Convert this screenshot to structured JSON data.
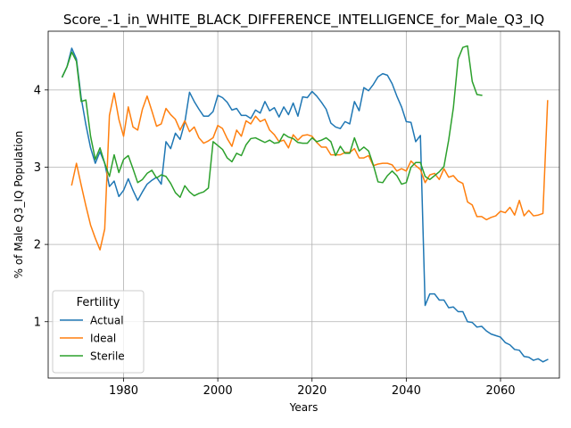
{
  "chart_data": {
    "type": "line",
    "title": "Score_-1_in_WHITE_BLACK_DIFFERENCE_INTELLIGENCE_for_Male_Q3_IQ",
    "xlabel": "Years",
    "ylabel": "% of Male Q3_IQ Population",
    "xlim": [
      1964,
      2072.5
    ],
    "ylim": [
      0.27,
      4.76
    ],
    "x_ticks": [
      1980,
      2000,
      2020,
      2040,
      2060
    ],
    "y_ticks": [
      1,
      2,
      3,
      4
    ],
    "grid": true,
    "legend": {
      "title": "Fertility",
      "position": "lower-left"
    },
    "series": [
      {
        "name": "Actual",
        "color": "#1f77b4",
        "points": [
          [
            1967,
            4.17
          ],
          [
            1968,
            4.3
          ],
          [
            1969,
            4.54
          ],
          [
            1970,
            4.4
          ],
          [
            1971,
            3.9
          ],
          [
            1972,
            3.55
          ],
          [
            1973,
            3.25
          ],
          [
            1974,
            3.05
          ],
          [
            1975,
            3.2
          ],
          [
            1976,
            3.05
          ],
          [
            1977,
            2.75
          ],
          [
            1978,
            2.82
          ],
          [
            1979,
            2.62
          ],
          [
            1980,
            2.7
          ],
          [
            1981,
            2.85
          ],
          [
            1982,
            2.7
          ],
          [
            1983,
            2.57
          ],
          [
            1984,
            2.68
          ],
          [
            1985,
            2.78
          ],
          [
            1986,
            2.83
          ],
          [
            1987,
            2.87
          ],
          [
            1988,
            2.78
          ],
          [
            1989,
            3.33
          ],
          [
            1990,
            3.24
          ],
          [
            1991,
            3.44
          ],
          [
            1992,
            3.36
          ],
          [
            1993,
            3.58
          ],
          [
            1994,
            3.97
          ],
          [
            1995,
            3.85
          ],
          [
            1996,
            3.75
          ],
          [
            1997,
            3.66
          ],
          [
            1998,
            3.66
          ],
          [
            1999,
            3.72
          ],
          [
            2000,
            3.93
          ],
          [
            2001,
            3.9
          ],
          [
            2002,
            3.84
          ],
          [
            2003,
            3.74
          ],
          [
            2004,
            3.76
          ],
          [
            2005,
            3.67
          ],
          [
            2006,
            3.67
          ],
          [
            2007,
            3.63
          ],
          [
            2008,
            3.74
          ],
          [
            2009,
            3.7
          ],
          [
            2010,
            3.85
          ],
          [
            2011,
            3.73
          ],
          [
            2012,
            3.77
          ],
          [
            2013,
            3.65
          ],
          [
            2014,
            3.78
          ],
          [
            2015,
            3.68
          ],
          [
            2016,
            3.83
          ],
          [
            2017,
            3.66
          ],
          [
            2018,
            3.91
          ],
          [
            2019,
            3.9
          ],
          [
            2020,
            3.98
          ],
          [
            2021,
            3.92
          ],
          [
            2022,
            3.84
          ],
          [
            2023,
            3.75
          ],
          [
            2024,
            3.57
          ],
          [
            2025,
            3.52
          ],
          [
            2026,
            3.5
          ],
          [
            2027,
            3.59
          ],
          [
            2028,
            3.56
          ],
          [
            2029,
            3.85
          ],
          [
            2030,
            3.73
          ],
          [
            2031,
            4.03
          ],
          [
            2032,
            3.99
          ],
          [
            2033,
            4.07
          ],
          [
            2034,
            4.17
          ],
          [
            2035,
            4.21
          ],
          [
            2036,
            4.19
          ],
          [
            2037,
            4.08
          ],
          [
            2038,
            3.92
          ],
          [
            2039,
            3.78
          ],
          [
            2040,
            3.59
          ],
          [
            2041,
            3.58
          ],
          [
            2042,
            3.33
          ],
          [
            2043,
            3.41
          ],
          [
            2044,
            1.21
          ],
          [
            2045,
            1.36
          ],
          [
            2046,
            1.36
          ],
          [
            2047,
            1.28
          ],
          [
            2048,
            1.28
          ],
          [
            2049,
            1.18
          ],
          [
            2050,
            1.19
          ],
          [
            2051,
            1.13
          ],
          [
            2052,
            1.13
          ],
          [
            2053,
            1.0
          ],
          [
            2054,
            0.99
          ],
          [
            2055,
            0.93
          ],
          [
            2056,
            0.94
          ],
          [
            2057,
            0.88
          ],
          [
            2058,
            0.84
          ],
          [
            2059,
            0.82
          ],
          [
            2060,
            0.8
          ],
          [
            2061,
            0.73
          ],
          [
            2062,
            0.7
          ],
          [
            2063,
            0.64
          ],
          [
            2064,
            0.63
          ],
          [
            2065,
            0.55
          ],
          [
            2066,
            0.54
          ],
          [
            2067,
            0.5
          ],
          [
            2068,
            0.52
          ],
          [
            2069,
            0.48
          ],
          [
            2070,
            0.51
          ]
        ]
      },
      {
        "name": "Ideal",
        "color": "#ff7f0e",
        "points": [
          [
            1969,
            2.77
          ],
          [
            1970,
            3.05
          ],
          [
            1971,
            2.77
          ],
          [
            1972,
            2.5
          ],
          [
            1973,
            2.25
          ],
          [
            1974,
            2.08
          ],
          [
            1975,
            1.93
          ],
          [
            1976,
            2.2
          ],
          [
            1977,
            3.67
          ],
          [
            1978,
            3.96
          ],
          [
            1979,
            3.62
          ],
          [
            1980,
            3.4
          ],
          [
            1981,
            3.78
          ],
          [
            1982,
            3.52
          ],
          [
            1983,
            3.48
          ],
          [
            1984,
            3.75
          ],
          [
            1985,
            3.92
          ],
          [
            1986,
            3.73
          ],
          [
            1987,
            3.53
          ],
          [
            1988,
            3.56
          ],
          [
            1989,
            3.76
          ],
          [
            1990,
            3.68
          ],
          [
            1991,
            3.62
          ],
          [
            1992,
            3.48
          ],
          [
            1993,
            3.6
          ],
          [
            1994,
            3.46
          ],
          [
            1995,
            3.52
          ],
          [
            1996,
            3.38
          ],
          [
            1997,
            3.31
          ],
          [
            1998,
            3.34
          ],
          [
            1999,
            3.38
          ],
          [
            2000,
            3.54
          ],
          [
            2001,
            3.5
          ],
          [
            2002,
            3.37
          ],
          [
            2003,
            3.27
          ],
          [
            2004,
            3.48
          ],
          [
            2005,
            3.4
          ],
          [
            2006,
            3.6
          ],
          [
            2007,
            3.56
          ],
          [
            2008,
            3.66
          ],
          [
            2009,
            3.59
          ],
          [
            2010,
            3.62
          ],
          [
            2011,
            3.48
          ],
          [
            2012,
            3.42
          ],
          [
            2013,
            3.33
          ],
          [
            2014,
            3.35
          ],
          [
            2015,
            3.25
          ],
          [
            2016,
            3.42
          ],
          [
            2017,
            3.35
          ],
          [
            2018,
            3.41
          ],
          [
            2019,
            3.42
          ],
          [
            2020,
            3.4
          ],
          [
            2021,
            3.32
          ],
          [
            2022,
            3.26
          ],
          [
            2023,
            3.26
          ],
          [
            2024,
            3.16
          ],
          [
            2025,
            3.16
          ],
          [
            2026,
            3.16
          ],
          [
            2027,
            3.19
          ],
          [
            2028,
            3.19
          ],
          [
            2029,
            3.24
          ],
          [
            2030,
            3.12
          ],
          [
            2031,
            3.12
          ],
          [
            2032,
            3.15
          ],
          [
            2033,
            3.02
          ],
          [
            2034,
            3.04
          ],
          [
            2035,
            3.05
          ],
          [
            2036,
            3.05
          ],
          [
            2037,
            3.03
          ],
          [
            2038,
            2.95
          ],
          [
            2039,
            2.98
          ],
          [
            2040,
            2.95
          ],
          [
            2041,
            3.08
          ],
          [
            2042,
            3.02
          ],
          [
            2043,
            2.97
          ],
          [
            2044,
            2.8
          ],
          [
            2045,
            2.9
          ],
          [
            2046,
            2.92
          ],
          [
            2047,
            2.84
          ],
          [
            2048,
            2.98
          ],
          [
            2049,
            2.87
          ],
          [
            2050,
            2.89
          ],
          [
            2051,
            2.82
          ],
          [
            2052,
            2.79
          ],
          [
            2053,
            2.55
          ],
          [
            2054,
            2.51
          ],
          [
            2055,
            2.36
          ],
          [
            2056,
            2.36
          ],
          [
            2057,
            2.32
          ],
          [
            2058,
            2.35
          ],
          [
            2059,
            2.37
          ],
          [
            2060,
            2.43
          ],
          [
            2061,
            2.41
          ],
          [
            2062,
            2.48
          ],
          [
            2063,
            2.38
          ],
          [
            2064,
            2.57
          ],
          [
            2065,
            2.37
          ],
          [
            2066,
            2.44
          ],
          [
            2067,
            2.37
          ],
          [
            2068,
            2.38
          ],
          [
            2069,
            2.4
          ],
          [
            2070,
            3.86
          ]
        ]
      },
      {
        "name": "Sterile",
        "color": "#2ca02c",
        "points": [
          [
            1967,
            4.17
          ],
          [
            1968,
            4.3
          ],
          [
            1969,
            4.49
          ],
          [
            1970,
            4.37
          ],
          [
            1971,
            3.85
          ],
          [
            1972,
            3.87
          ],
          [
            1973,
            3.4
          ],
          [
            1974,
            3.1
          ],
          [
            1975,
            3.25
          ],
          [
            1976,
            3.05
          ],
          [
            1977,
            2.88
          ],
          [
            1978,
            3.16
          ],
          [
            1979,
            2.93
          ],
          [
            1980,
            3.1
          ],
          [
            1981,
            3.15
          ],
          [
            1982,
            2.98
          ],
          [
            1983,
            2.8
          ],
          [
            1984,
            2.84
          ],
          [
            1985,
            2.92
          ],
          [
            1986,
            2.96
          ],
          [
            1987,
            2.86
          ],
          [
            1988,
            2.9
          ],
          [
            1989,
            2.88
          ],
          [
            1990,
            2.79
          ],
          [
            1991,
            2.67
          ],
          [
            1992,
            2.61
          ],
          [
            1993,
            2.76
          ],
          [
            1994,
            2.68
          ],
          [
            1995,
            2.63
          ],
          [
            1996,
            2.66
          ],
          [
            1997,
            2.68
          ],
          [
            1998,
            2.73
          ],
          [
            1999,
            3.33
          ],
          [
            2000,
            3.28
          ],
          [
            2001,
            3.23
          ],
          [
            2002,
            3.12
          ],
          [
            2003,
            3.07
          ],
          [
            2004,
            3.18
          ],
          [
            2005,
            3.15
          ],
          [
            2006,
            3.29
          ],
          [
            2007,
            3.37
          ],
          [
            2008,
            3.38
          ],
          [
            2009,
            3.35
          ],
          [
            2010,
            3.32
          ],
          [
            2011,
            3.35
          ],
          [
            2012,
            3.31
          ],
          [
            2013,
            3.32
          ],
          [
            2014,
            3.43
          ],
          [
            2015,
            3.39
          ],
          [
            2016,
            3.37
          ],
          [
            2017,
            3.32
          ],
          [
            2018,
            3.31
          ],
          [
            2019,
            3.31
          ],
          [
            2020,
            3.38
          ],
          [
            2021,
            3.33
          ],
          [
            2022,
            3.35
          ],
          [
            2023,
            3.38
          ],
          [
            2024,
            3.33
          ],
          [
            2025,
            3.15
          ],
          [
            2026,
            3.27
          ],
          [
            2027,
            3.18
          ],
          [
            2028,
            3.18
          ],
          [
            2029,
            3.38
          ],
          [
            2030,
            3.21
          ],
          [
            2031,
            3.26
          ],
          [
            2032,
            3.21
          ],
          [
            2033,
            3.03
          ],
          [
            2034,
            2.81
          ],
          [
            2035,
            2.8
          ],
          [
            2036,
            2.89
          ],
          [
            2037,
            2.95
          ],
          [
            2038,
            2.89
          ],
          [
            2039,
            2.78
          ],
          [
            2040,
            2.8
          ],
          [
            2041,
            3.0
          ],
          [
            2042,
            3.06
          ],
          [
            2043,
            3.06
          ],
          [
            2044,
            2.88
          ],
          [
            2045,
            2.84
          ],
          [
            2046,
            2.89
          ],
          [
            2047,
            2.94
          ],
          [
            2048,
            3.01
          ],
          [
            2049,
            3.35
          ],
          [
            2050,
            3.77
          ],
          [
            2051,
            4.4
          ],
          [
            2052,
            4.55
          ],
          [
            2053,
            4.57
          ],
          [
            2054,
            4.11
          ],
          [
            2055,
            3.94
          ],
          [
            2056,
            3.93
          ]
        ]
      }
    ]
  }
}
